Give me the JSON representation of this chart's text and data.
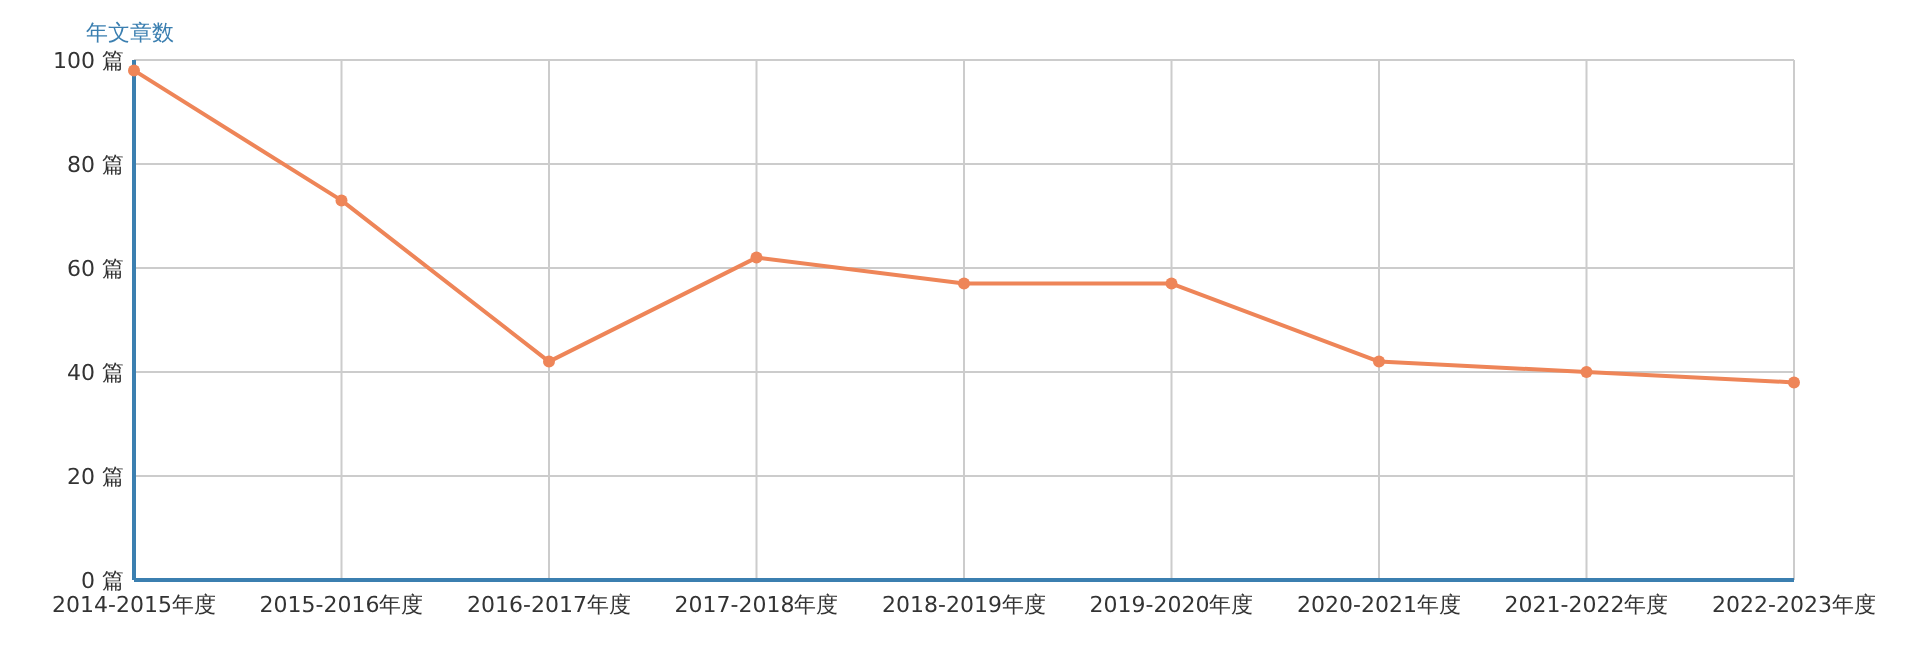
{
  "chart_data": {
    "type": "line",
    "ylabel": "年文章数",
    "categories": [
      "2014-2015年度",
      "2015-2016年度",
      "2016-2017年度",
      "2017-2018年度",
      "2018-2019年度",
      "2019-2020年度",
      "2020-2021年度",
      "2021-2022年度",
      "2022-2023年度"
    ],
    "series": [
      {
        "color": "#ee8558",
        "values": [
          98,
          73,
          42,
          62,
          57,
          57,
          42,
          40,
          38
        ]
      }
    ],
    "ylim": [
      0,
      100
    ],
    "yticks": [
      {
        "value": 0,
        "label": "0 篇"
      },
      {
        "value": 20,
        "label": "20 篇"
      },
      {
        "value": 40,
        "label": "40 篇"
      },
      {
        "value": 60,
        "label": "60 篇"
      },
      {
        "value": 80,
        "label": "80 篇"
      },
      {
        "value": 100,
        "label": "100 篇"
      }
    ],
    "grid": true,
    "marker": "circle",
    "line_style": "solid"
  }
}
